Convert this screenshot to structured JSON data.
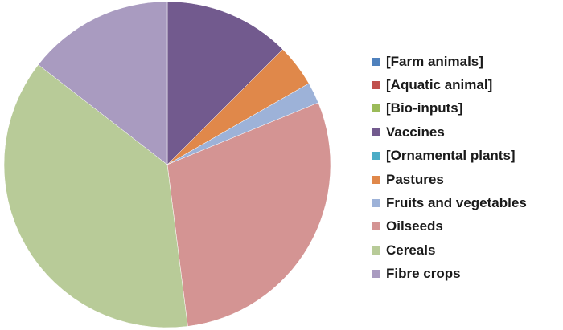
{
  "chart_data": {
    "type": "pie",
    "title": "",
    "legend_position": "right",
    "start_angle_deg": 0,
    "direction": "clockwise",
    "series": [
      {
        "name": "[Farm animals]",
        "value": 0,
        "color": "#4F81BD"
      },
      {
        "name": "[Aquatic animal]",
        "value": 0,
        "color": "#C0504D"
      },
      {
        "name": "[Bio-inputs]",
        "value": 0,
        "color": "#9BBB59"
      },
      {
        "name": "Vaccines",
        "value": 12.5,
        "color": "#725A8E"
      },
      {
        "name": "[Ornamental plants]",
        "value": 0,
        "color": "#4BACC6"
      },
      {
        "name": "Pastures",
        "value": 4.2,
        "color": "#E0884A"
      },
      {
        "name": "Fruits and vegetables",
        "value": 2.1,
        "color": "#9DB2D8"
      },
      {
        "name": "Oilseeds",
        "value": 29.2,
        "color": "#D49493"
      },
      {
        "name": "Cereals",
        "value": 37.5,
        "color": "#B8CB98"
      },
      {
        "name": "Fibre crops",
        "value": 14.5,
        "color": "#A99BC0"
      }
    ]
  }
}
